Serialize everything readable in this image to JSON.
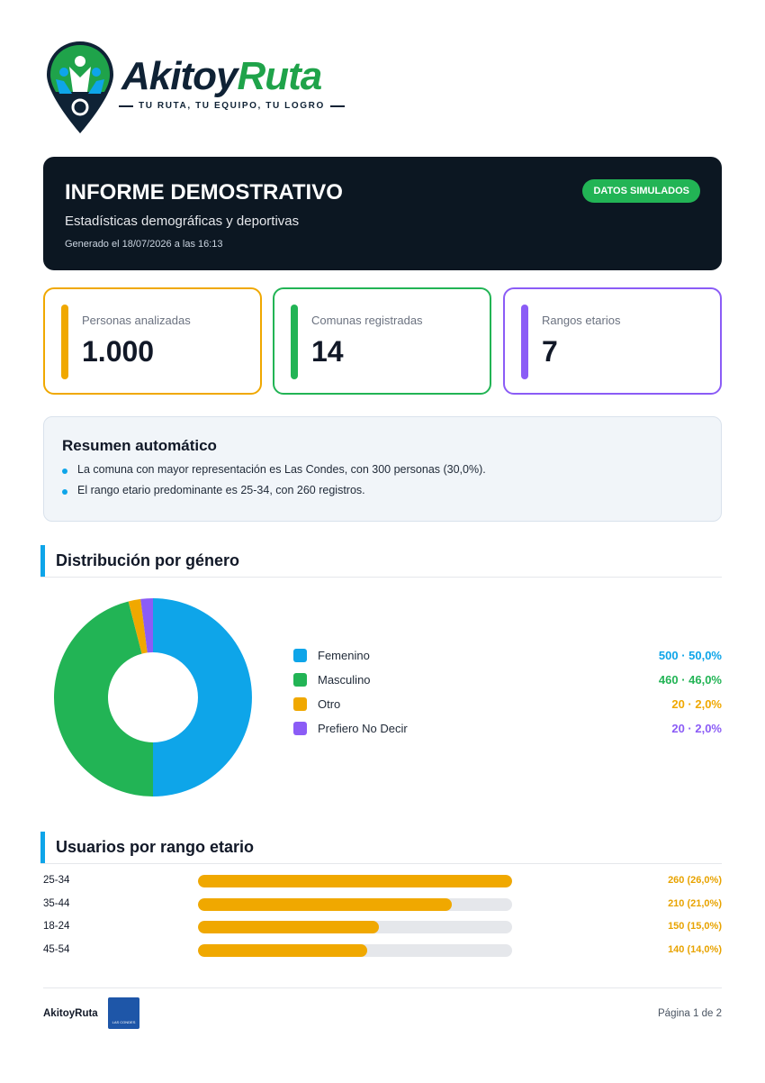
{
  "brand": {
    "name_part1": "Akitoy",
    "name_part2": "Ruta",
    "tagline": "TU RUTA, TU EQUIPO, TU LOGRO"
  },
  "header": {
    "title": "INFORME DEMOSTRATIVO",
    "subtitle": "Estadísticas demográficas y deportivas",
    "generated": "Generado el 18/07/2026 a las 16:13",
    "badge": "DATOS SIMULADOS"
  },
  "stats": [
    {
      "label": "Personas analizadas",
      "value": "1.000",
      "color": "#f0a800"
    },
    {
      "label": "Comunas registradas",
      "value": "14",
      "color": "#22b455"
    },
    {
      "label": "Rangos etarios",
      "value": "7",
      "color": "#8b5cf6"
    }
  ],
  "summary": {
    "title": "Resumen automático",
    "items": [
      "La comuna con mayor representación es Las Condes, con 300 personas (30,0%).",
      "El rango etario predominante es 25-34, con 260 registros."
    ]
  },
  "gender_section": {
    "title": "Distribución por género"
  },
  "age_section": {
    "title": "Usuarios por rango etario"
  },
  "chart_data": [
    {
      "type": "pie",
      "title": "Distribución por género",
      "categories": [
        "Femenino",
        "Masculino",
        "Otro",
        "Prefiero No Decir"
      ],
      "values": [
        500,
        460,
        20,
        20
      ],
      "labels": [
        "500 · 50,0%",
        "460 · 46,0%",
        "20 · 2,0%",
        "20 · 2,0%"
      ],
      "colors": [
        "#0ea5e9",
        "#22b455",
        "#f0a800",
        "#8b5cf6"
      ],
      "legend": "right"
    },
    {
      "type": "bar",
      "title": "Usuarios por rango etario",
      "categories": [
        "25-34",
        "35-44",
        "18-24",
        "45-54"
      ],
      "values": [
        260,
        210,
        150,
        140
      ],
      "labels": [
        "260 (26,0%)",
        "210 (21,0%)",
        "150 (15,0%)",
        "140 (14,0%)"
      ],
      "xlim": [
        0,
        260
      ],
      "color": "#f0a800"
    }
  ],
  "footer": {
    "brand": "AkitoyRuta",
    "page": "Página 1 de 2"
  }
}
